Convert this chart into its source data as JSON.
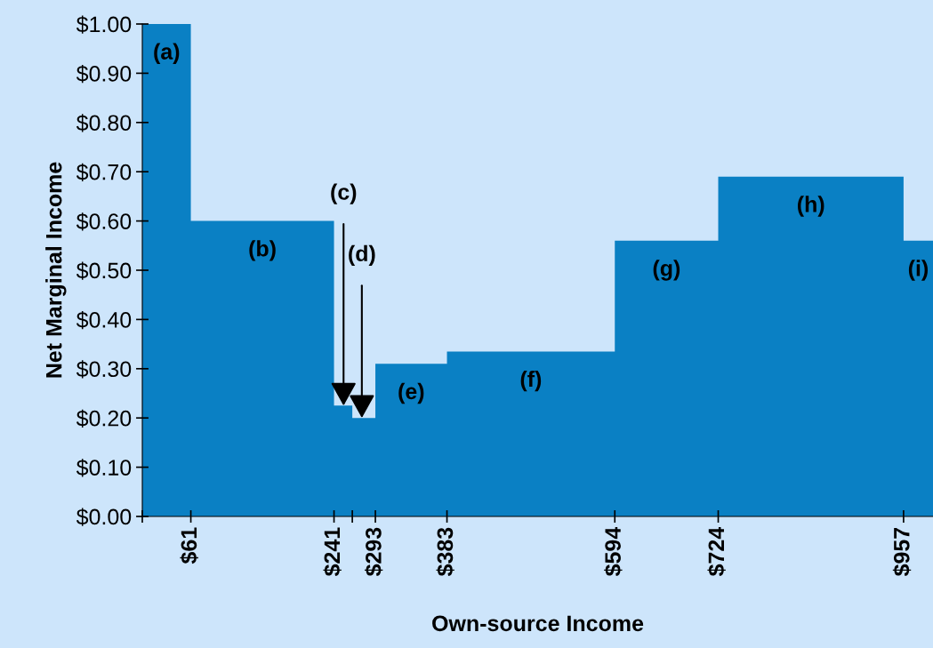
{
  "chart_data": {
    "type": "area",
    "xlabel": "Own-source Income",
    "ylabel": "Net Marginal Income",
    "series": [
      {
        "color": "#0a80c4",
        "x": [
          0,
          61,
          61,
          241,
          241,
          264,
          264,
          293,
          293,
          383,
          383,
          594,
          594,
          724,
          724,
          957,
          957,
          994
        ],
        "values": [
          1.0,
          1.0,
          0.6,
          0.6,
          0.225,
          0.225,
          0.2,
          0.2,
          0.31,
          0.31,
          0.335,
          0.335,
          0.56,
          0.56,
          0.69,
          0.69,
          0.56,
          0.56
        ]
      }
    ],
    "xlim": [
      0,
      994
    ],
    "xticks": [
      {
        "value": 0,
        "label": null
      },
      {
        "value": 61,
        "label": "$61"
      },
      {
        "value": 241,
        "label": "$241"
      },
      {
        "value": 264,
        "label": null
      },
      {
        "value": 293,
        "label": "$293"
      },
      {
        "value": 383,
        "label": "$383"
      },
      {
        "value": 594,
        "label": "$594"
      },
      {
        "value": 724,
        "label": "$724"
      },
      {
        "value": 957,
        "label": "$957"
      }
    ],
    "ylim": [
      0,
      1.0
    ],
    "yticks": [
      {
        "value": 0,
        "label": "$0.00"
      },
      {
        "value": 0.1,
        "label": "$0.10"
      },
      {
        "value": 0.2,
        "label": "$0.20"
      },
      {
        "value": 0.3,
        "label": "$0.30"
      },
      {
        "value": 0.4,
        "label": "$0.40"
      },
      {
        "value": 0.5,
        "label": "$0.50"
      },
      {
        "value": 0.6,
        "label": "$0.60"
      },
      {
        "value": 0.7,
        "label": "$0.70"
      },
      {
        "value": 0.8,
        "label": "$0.80"
      },
      {
        "value": 0.9,
        "label": "$0.90"
      },
      {
        "value": 1.0,
        "label": "$1.00"
      }
    ],
    "grid": false,
    "annotations": [
      "(a)",
      "(b)",
      {
        "text": "(c)",
        "x": 253,
        "y": 0.225
      },
      {
        "text": "(d)",
        "x": 276,
        "y": 0.2
      },
      "(e)",
      "(f)",
      "(g)",
      "(h)",
      "(i)"
    ]
  }
}
